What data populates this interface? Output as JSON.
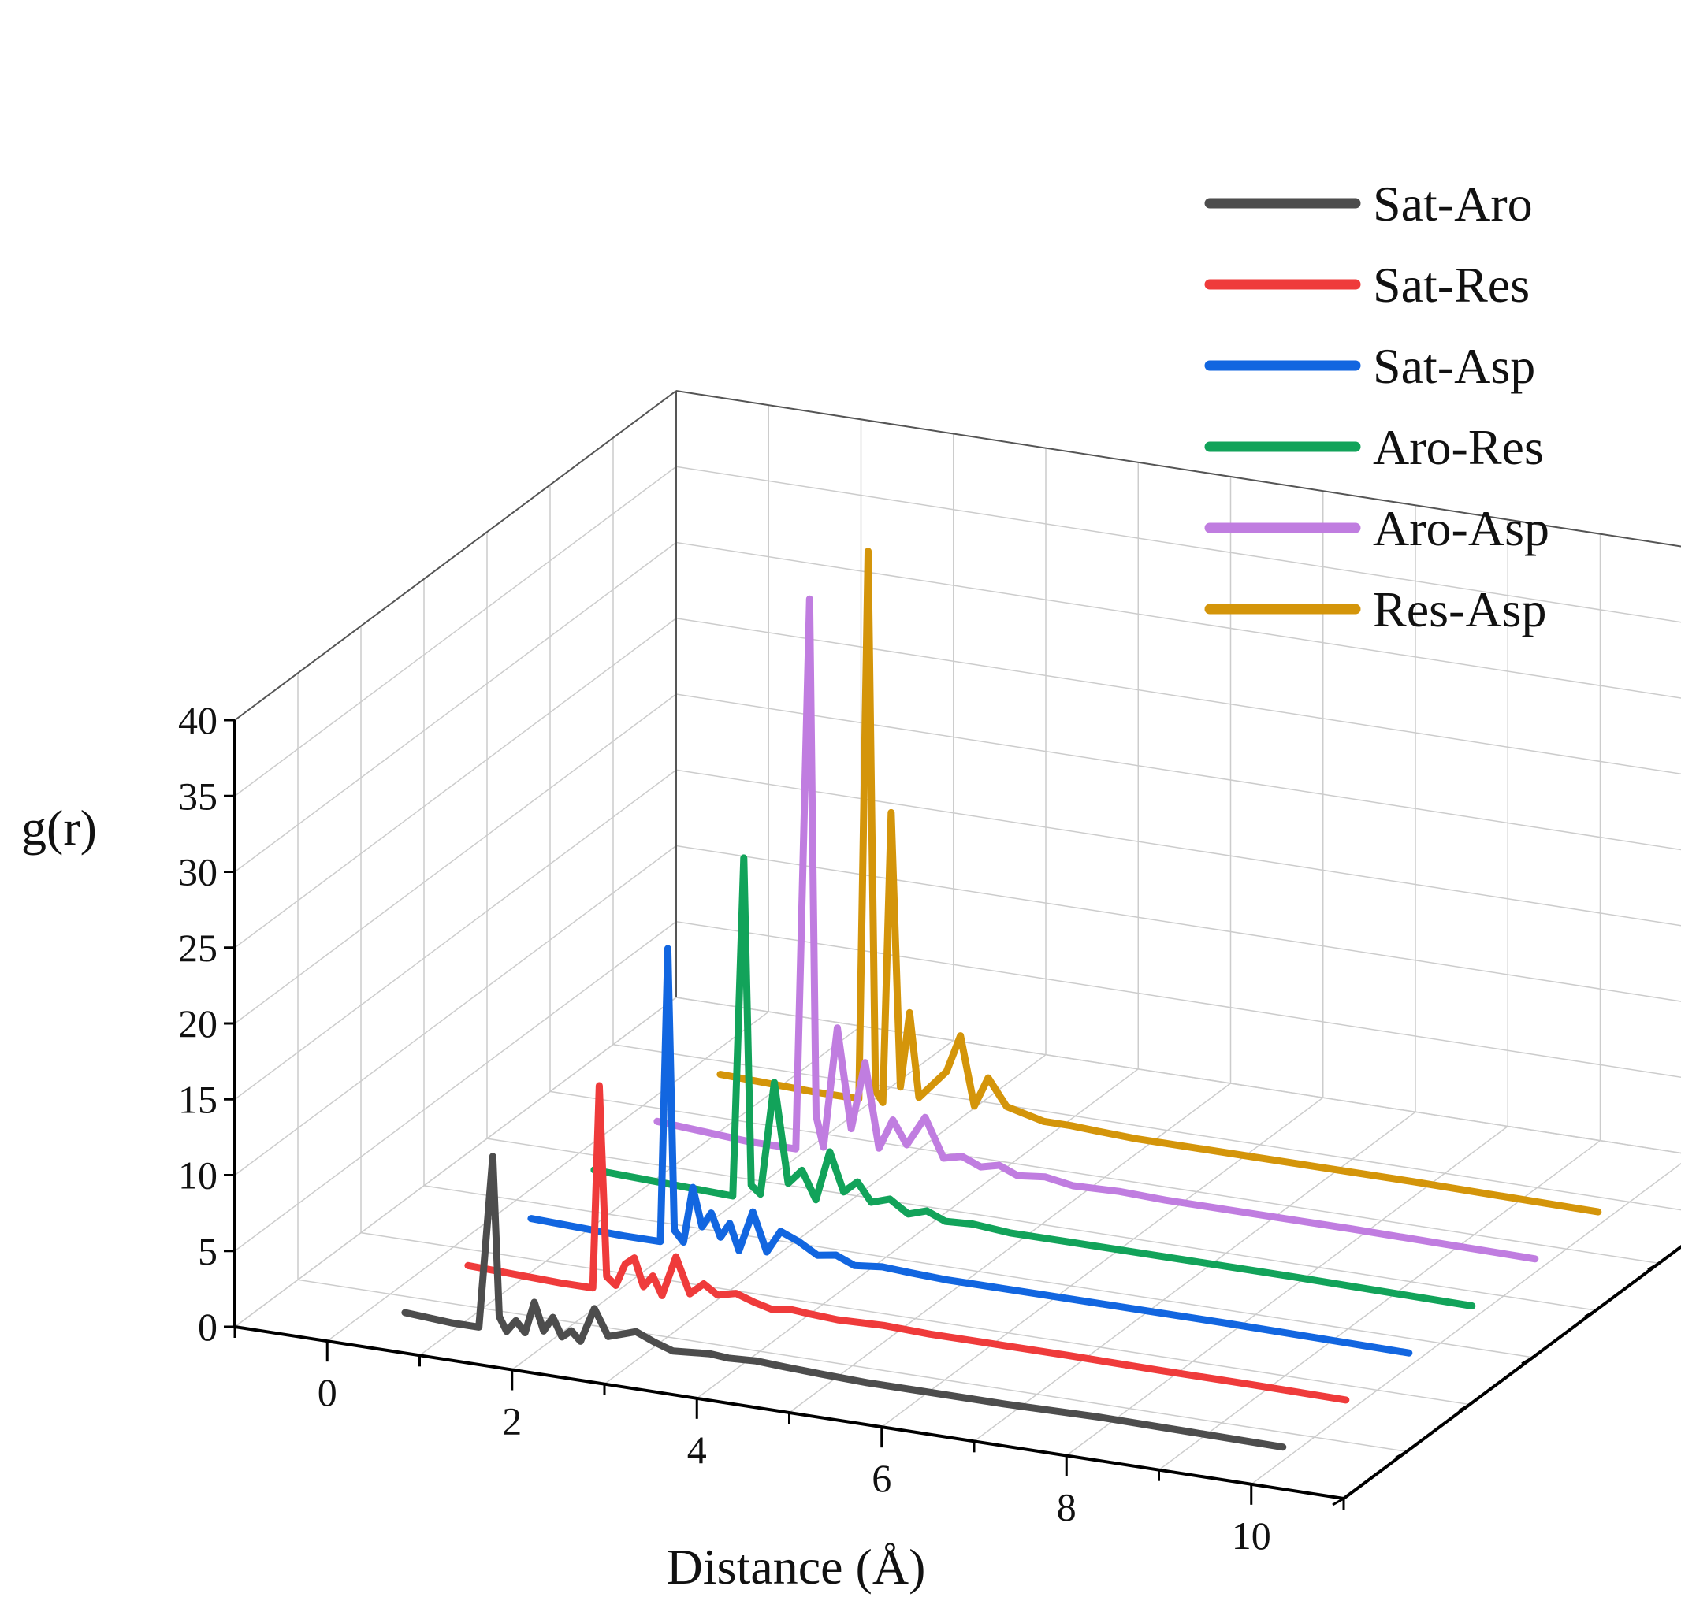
{
  "chart_data": {
    "type": "line",
    "projection": "3d-waterfall",
    "xlabel": "Distance (Å)",
    "ylabel": "g(r)",
    "x_ticks": [
      "0",
      "2",
      "4",
      "6",
      "8",
      "10"
    ],
    "y_ticks": [
      "0",
      "5",
      "10",
      "15",
      "20",
      "25",
      "30",
      "35",
      "40"
    ],
    "xlim": [
      -1,
      11
    ],
    "ylim": [
      0,
      40
    ],
    "legend_position": "top-right",
    "series": [
      {
        "name": "Sat-Aro",
        "color": "#4d4d4d",
        "x": [
          0.5,
          1.0,
          1.3,
          1.45,
          1.52,
          1.6,
          1.7,
          1.8,
          1.9,
          2.0,
          2.1,
          2.2,
          2.3,
          2.4,
          2.55,
          2.7,
          2.85,
          3.0,
          3.2,
          3.4,
          3.6,
          3.8,
          4.0,
          4.3,
          4.6,
          5.0,
          5.5,
          6.0,
          7.0,
          8.0,
          9.0,
          10.0
        ],
        "y": [
          0.8,
          0.6,
          0.6,
          12.0,
          1.5,
          0.6,
          1.4,
          0.7,
          2.8,
          1.0,
          2.0,
          0.8,
          1.3,
          0.7,
          3.0,
          1.3,
          1.6,
          1.9,
          1.4,
          1.0,
          1.1,
          1.2,
          1.1,
          1.2,
          1.1,
          1.0,
          0.9,
          0.9,
          0.9,
          1.0,
          0.95,
          0.9
        ]
      },
      {
        "name": "Sat-Res",
        "color": "#ef3b3b",
        "x": [
          0.5,
          1.0,
          1.5,
          1.85,
          1.92,
          2.0,
          2.1,
          2.2,
          2.3,
          2.4,
          2.5,
          2.6,
          2.75,
          2.9,
          3.05,
          3.2,
          3.4,
          3.6,
          3.8,
          4.0,
          4.2,
          4.5,
          5.0,
          5.5,
          6.0,
          7.0,
          8.0,
          9.0,
          10.0
        ],
        "y": [
          0.8,
          0.7,
          0.6,
          0.6,
          14.0,
          1.5,
          1.0,
          2.5,
          3.0,
          1.2,
          2.0,
          0.8,
          3.5,
          1.2,
          2.0,
          1.4,
          1.7,
          1.3,
          1.0,
          1.2,
          1.1,
          1.0,
          1.1,
          1.0,
          1.0,
          1.0,
          0.95,
          0.95,
          0.9
        ]
      },
      {
        "name": "Sat-Asp",
        "color": "#1266e0",
        "x": [
          0.5,
          1.0,
          1.5,
          1.9,
          1.98,
          2.05,
          2.15,
          2.25,
          2.35,
          2.45,
          2.55,
          2.65,
          2.75,
          2.9,
          3.05,
          3.2,
          3.4,
          3.6,
          3.8,
          4.0,
          4.3,
          4.6,
          5.0,
          5.5,
          6.0,
          7.0,
          8.0,
          9.0,
          10.0
        ],
        "y": [
          0.8,
          0.7,
          0.6,
          0.6,
          20.0,
          1.5,
          0.8,
          4.5,
          2.0,
          3.0,
          1.5,
          2.5,
          0.8,
          3.5,
          1.0,
          2.5,
          2.0,
          1.3,
          1.5,
          1.0,
          1.2,
          1.1,
          1.0,
          1.0,
          1.0,
          1.0,
          1.0,
          0.95,
          0.9
        ]
      },
      {
        "name": "Aro-Res",
        "color": "#12a35a",
        "x": [
          0.5,
          1.0,
          1.5,
          2.0,
          2.12,
          2.2,
          2.3,
          2.45,
          2.6,
          2.75,
          2.9,
          3.05,
          3.2,
          3.35,
          3.5,
          3.7,
          3.9,
          4.1,
          4.3,
          4.6,
          5.0,
          5.5,
          6.0,
          7.0,
          8.0,
          9.0,
          10.0
        ],
        "y": [
          0.9,
          0.8,
          0.7,
          0.6,
          23.0,
          1.5,
          1.0,
          8.5,
          2.0,
          3.0,
          1.2,
          4.5,
          2.0,
          2.8,
          1.6,
          2.0,
          1.2,
          1.6,
          1.1,
          1.2,
          1.0,
          1.0,
          1.0,
          1.0,
          1.0,
          0.95,
          0.9
        ]
      },
      {
        "name": "Aro-Asp",
        "color": "#c07de0",
        "x": [
          0.5,
          1.0,
          1.5,
          2.0,
          2.15,
          2.22,
          2.3,
          2.45,
          2.6,
          2.75,
          2.9,
          3.05,
          3.2,
          3.4,
          3.6,
          3.8,
          4.0,
          4.2,
          4.4,
          4.7,
          5.0,
          5.5,
          6.0,
          7.0,
          8.0,
          9.0,
          10.0
        ],
        "y": [
          1.0,
          0.8,
          0.6,
          0.6,
          37.0,
          3.0,
          1.0,
          9.0,
          2.5,
          7.0,
          1.5,
          3.5,
          2.0,
          4.0,
          1.5,
          1.8,
          1.3,
          1.6,
          1.1,
          1.3,
          1.0,
          1.1,
          1.0,
          1.0,
          1.0,
          0.95,
          0.9
        ]
      },
      {
        "name": "Res-Asp",
        "color": "#d4950a",
        "x": [
          0.5,
          1.0,
          1.5,
          2.0,
          2.1,
          2.18,
          2.26,
          2.35,
          2.45,
          2.55,
          2.65,
          2.8,
          2.95,
          3.1,
          3.25,
          3.4,
          3.6,
          3.8,
          4.0,
          4.3,
          4.6,
          5.0,
          5.5,
          6.0,
          7.0,
          8.0,
          9.0,
          10.0
        ],
        "y": [
          1.0,
          0.9,
          0.8,
          0.8,
          37.0,
          1.5,
          0.8,
          20.0,
          2.0,
          7.0,
          1.5,
          2.5,
          3.5,
          6.0,
          1.5,
          3.5,
          1.8,
          1.5,
          1.2,
          1.2,
          1.1,
          1.0,
          1.0,
          1.0,
          1.0,
          1.0,
          0.95,
          0.9
        ]
      }
    ]
  }
}
